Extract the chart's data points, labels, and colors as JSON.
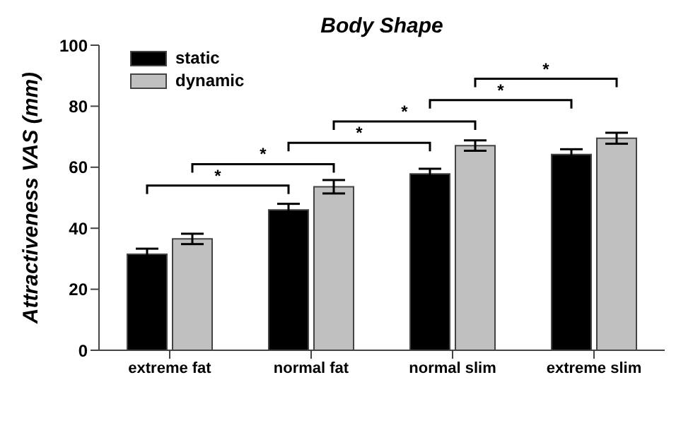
{
  "chart_data": {
    "type": "bar",
    "title": "Body Shape",
    "ylabel": "Attractiveness VAS (mm)",
    "categories": [
      "extreme fat",
      "normal fat",
      "normal slim",
      "extreme slim"
    ],
    "series": [
      {
        "name": "static",
        "color": "#000000",
        "values": [
          31.5,
          46,
          57.8,
          64.2
        ],
        "errors": [
          1.8,
          2,
          1.7,
          1.7
        ]
      },
      {
        "name": "dynamic",
        "color": "#c0c0c0",
        "values": [
          36.5,
          53.6,
          67.1,
          69.5
        ],
        "errors": [
          1.7,
          2.2,
          1.7,
          1.8
        ]
      }
    ],
    "ylim": [
      0,
      100
    ],
    "yticks": [
      0,
      20,
      40,
      60,
      80,
      100
    ],
    "grid": false,
    "legend": "top left",
    "annotations": [
      "*",
      "*",
      "*",
      "*",
      "*",
      "*"
    ]
  }
}
